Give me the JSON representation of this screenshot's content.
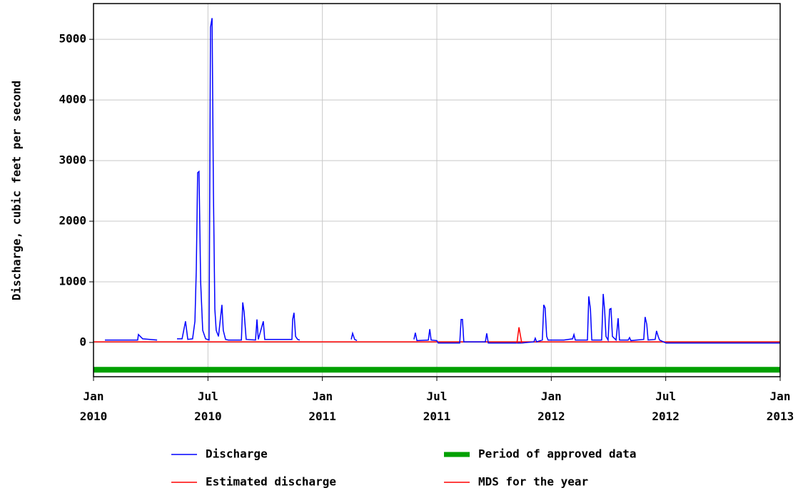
{
  "chart_data": {
    "type": "line",
    "ylabel": "Discharge, cubic feet per second",
    "xlim": [
      2010.0,
      2013.0
    ],
    "xticks": [
      {
        "value": 2010.0,
        "label": "Jan 2010"
      },
      {
        "value": 2010.5,
        "label": "Jul 2010"
      },
      {
        "value": 2011.0,
        "label": "Jan 2011"
      },
      {
        "value": 2011.5,
        "label": "Jul 2011"
      },
      {
        "value": 2012.0,
        "label": "Jan 2012"
      },
      {
        "value": 2012.5,
        "label": "Jul 2012"
      },
      {
        "value": 2013.0,
        "label": "Jan 2013"
      }
    ],
    "ylim": [
      -565,
      5590
    ],
    "yticks": [
      0,
      1000,
      2000,
      3000,
      4000,
      5000
    ],
    "grid": true,
    "series": [
      {
        "name": "Discharge",
        "color": "#0000ff",
        "x": [
          2010.05,
          2010.193,
          2010.196,
          2010.215,
          2010.278,
          2010.3,
          2010.365,
          2010.387,
          2010.402,
          2010.412,
          2010.433,
          2010.443,
          2010.449,
          2010.455,
          2010.461,
          2010.468,
          2010.477,
          2010.49,
          2010.505,
          2010.511,
          2010.518,
          2010.524,
          2010.53,
          2010.536,
          2010.546,
          2010.561,
          2010.567,
          2010.577,
          2010.589,
          2010.646,
          2010.652,
          2010.658,
          2010.667,
          2010.708,
          2010.714,
          2010.72,
          2010.742,
          2010.748,
          2010.867,
          2010.87,
          2010.876,
          2010.883,
          2010.892,
          2010.901,
          2010.95,
          2011.126,
          2011.132,
          2011.141,
          2011.151,
          2011.2,
          2011.4,
          2011.406,
          2011.413,
          2011.463,
          2011.469,
          2011.475,
          2011.5,
          2011.506,
          2011.6,
          2011.606,
          2011.612,
          2011.618,
          2011.712,
          2011.718,
          2011.725,
          2011.852,
          2011.871,
          2011.924,
          2011.93,
          2011.936,
          2011.961,
          2011.967,
          2011.973,
          2011.98,
          2011.986,
          2012.055,
          2012.093,
          2012.099,
          2012.105,
          2012.158,
          2012.164,
          2012.171,
          2012.177,
          2012.22,
          2012.227,
          2012.233,
          2012.239,
          2012.248,
          2012.255,
          2012.261,
          2012.267,
          2012.283,
          2012.292,
          2012.298,
          2012.336,
          2012.342,
          2012.348,
          2012.404,
          2012.41,
          2012.417,
          2012.423,
          2012.454,
          2012.46,
          2012.467,
          2012.473,
          2012.501,
          2013.0
        ],
        "values": [
          40,
          40,
          130,
          60,
          40,
          null,
          60,
          60,
          350,
          50,
          60,
          350,
          1200,
          2800,
          2820,
          1000,
          200,
          60,
          40,
          5200,
          5350,
          2500,
          550,
          200,
          100,
          620,
          200,
          50,
          40,
          40,
          660,
          500,
          50,
          40,
          380,
          50,
          350,
          50,
          50,
          380,
          490,
          100,
          50,
          40,
          null,
          50,
          150,
          50,
          30,
          null,
          50,
          160,
          30,
          40,
          220,
          40,
          30,
          -10,
          -10,
          380,
          380,
          10,
          10,
          150,
          -10,
          -10,
          -10,
          10,
          70,
          10,
          40,
          620,
          570,
          100,
          40,
          40,
          60,
          130,
          40,
          40,
          760,
          550,
          40,
          40,
          800,
          550,
          100,
          40,
          550,
          560,
          100,
          40,
          400,
          40,
          40,
          80,
          30,
          50,
          420,
          300,
          40,
          50,
          190,
          100,
          40,
          -10,
          -10
        ]
      },
      {
        "name": "Estimated discharge",
        "color": "#ff0000",
        "x": [
          2011.85,
          2011.859,
          2011.865,
          2011.871
        ],
        "values": [
          -10,
          250,
          120,
          -10
        ]
      },
      {
        "name": "Period of approved data",
        "color": "#00a000",
        "x": [
          2010.0,
          2013.0
        ],
        "values": [
          -450,
          -450
        ]
      },
      {
        "name": "MDS for the year",
        "color": "#ff0000",
        "x": [
          2010.0,
          2013.0
        ],
        "values": [
          10,
          10
        ]
      }
    ]
  }
}
